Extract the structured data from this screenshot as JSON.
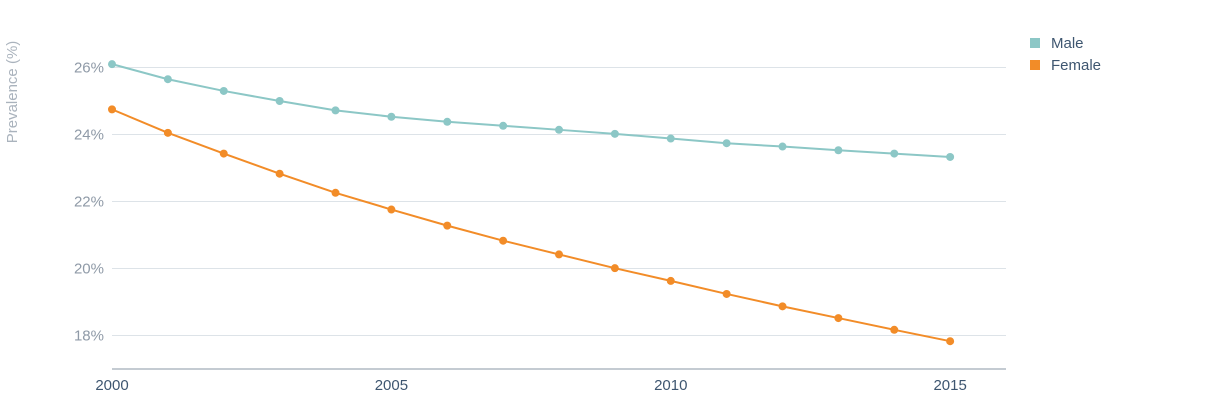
{
  "chart_data": {
    "type": "line",
    "ylabel": "Prevalence (%)",
    "xlabel": "",
    "x": [
      2000,
      2001,
      2002,
      2003,
      2004,
      2005,
      2006,
      2007,
      2008,
      2009,
      2010,
      2011,
      2012,
      2013,
      2014,
      2015
    ],
    "xlim": [
      2000,
      2016
    ],
    "x_ticks": [
      2000,
      2005,
      2010,
      2015
    ],
    "x_tick_labels": [
      "2000",
      "2005",
      "2010",
      "2015"
    ],
    "ylim": [
      17,
      27
    ],
    "y_ticks": [
      18,
      20,
      22,
      24,
      26
    ],
    "y_tick_labels": [
      "18%",
      "20%",
      "22%",
      "24%",
      "26%"
    ],
    "grid": true,
    "legend_position": "top-right",
    "series": [
      {
        "name": "Male",
        "color": "#8cc7c6",
        "values": [
          26.1,
          25.65,
          25.3,
          25.0,
          24.72,
          24.53,
          24.38,
          24.26,
          24.14,
          24.02,
          23.88,
          23.74,
          23.64,
          23.53,
          23.43,
          23.33
        ]
      },
      {
        "name": "Female",
        "color": "#f28c28",
        "values": [
          24.75,
          24.05,
          23.43,
          22.83,
          22.26,
          21.76,
          21.28,
          20.83,
          20.42,
          20.01,
          19.63,
          19.24,
          18.87,
          18.52,
          18.17,
          17.83
        ]
      }
    ]
  }
}
